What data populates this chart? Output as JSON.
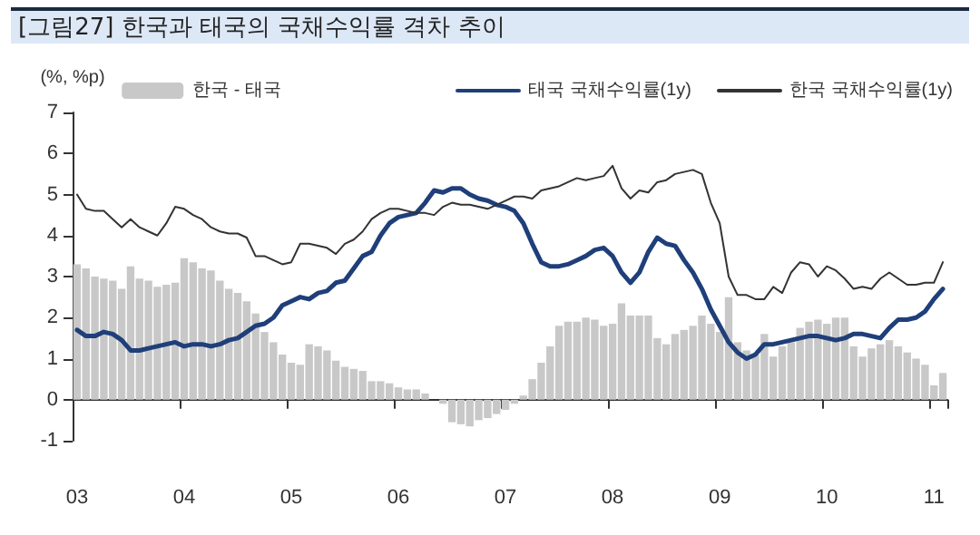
{
  "chart_data": {
    "type": "bar",
    "title": "[그림27] 한국과 태국의 국채수익률 격차 추이",
    "ylabel": "(%, %p)",
    "categories": [
      "03",
      null,
      null,
      null,
      null,
      null,
      null,
      null,
      null,
      null,
      null,
      null,
      "04",
      null,
      null,
      null,
      null,
      null,
      null,
      null,
      null,
      null,
      null,
      null,
      "05",
      null,
      null,
      null,
      null,
      null,
      null,
      null,
      null,
      null,
      null,
      null,
      "06",
      null,
      null,
      null,
      null,
      null,
      null,
      null,
      null,
      null,
      null,
      null,
      "07",
      null,
      null,
      null,
      null,
      null,
      null,
      null,
      null,
      null,
      null,
      null,
      "08",
      null,
      null,
      null,
      null,
      null,
      null,
      null,
      null,
      null,
      null,
      null,
      "09",
      null,
      null,
      null,
      null,
      null,
      null,
      null,
      null,
      null,
      null,
      null,
      "10",
      null,
      null,
      null,
      null,
      null,
      null,
      null,
      null,
      null,
      null,
      null,
      "11",
      null
    ],
    "series": [
      {
        "name": "한국 - 태국",
        "color": "#c8c8c8",
        "values": [
          3.3,
          3.2,
          3.0,
          2.95,
          2.9,
          2.7,
          3.25,
          2.95,
          2.9,
          2.75,
          2.8,
          2.85,
          3.45,
          3.35,
          3.2,
          3.15,
          2.9,
          2.7,
          2.6,
          2.4,
          2.1,
          1.65,
          1.4,
          1.1,
          0.9,
          0.85,
          1.35,
          1.3,
          1.2,
          0.95,
          0.8,
          0.75,
          0.7,
          0.45,
          0.45,
          0.4,
          0.3,
          0.25,
          0.25,
          0.15,
          0.0,
          -0.1,
          -0.55,
          -0.6,
          -0.65,
          -0.5,
          -0.45,
          -0.35,
          -0.25,
          -0.1,
          0.1,
          0.5,
          0.9,
          1.3,
          1.8,
          1.9,
          1.9,
          2.0,
          1.95,
          1.8,
          1.85,
          2.35,
          2.05,
          2.05,
          2.05,
          1.5,
          1.35,
          1.6,
          1.7,
          1.8,
          2.05,
          1.85,
          1.65,
          2.5,
          1.4,
          1.2,
          1.1,
          1.6,
          1.05,
          1.3,
          1.4,
          1.75,
          1.9,
          1.95,
          1.85,
          2.0,
          2.0,
          1.3,
          1.05,
          1.25,
          1.35,
          1.45,
          1.3,
          1.15,
          1.0,
          0.85,
          0.35,
          0.65
        ]
      },
      {
        "name": "태국 국채수익률(1y)",
        "type": "line",
        "color": "#1f3f7a",
        "values": [
          1.7,
          1.55,
          1.55,
          1.65,
          1.6,
          1.45,
          1.2,
          1.2,
          1.25,
          1.3,
          1.35,
          1.4,
          1.3,
          1.35,
          1.35,
          1.3,
          1.35,
          1.45,
          1.5,
          1.65,
          1.8,
          1.85,
          2.0,
          2.3,
          2.4,
          2.5,
          2.45,
          2.6,
          2.65,
          2.85,
          2.9,
          3.2,
          3.5,
          3.6,
          4.0,
          4.3,
          4.45,
          4.5,
          4.55,
          4.8,
          5.1,
          5.05,
          5.15,
          5.15,
          5.0,
          4.9,
          4.85,
          4.75,
          4.7,
          4.6,
          4.3,
          3.8,
          3.35,
          3.25,
          3.25,
          3.3,
          3.4,
          3.5,
          3.65,
          3.7,
          3.5,
          3.1,
          2.85,
          3.1,
          3.6,
          3.95,
          3.8,
          3.75,
          3.4,
          3.1,
          2.7,
          2.2,
          1.8,
          1.4,
          1.15,
          1.0,
          1.1,
          1.35,
          1.35,
          1.4,
          1.45,
          1.5,
          1.55,
          1.55,
          1.5,
          1.45,
          1.5,
          1.6,
          1.6,
          1.55,
          1.5,
          1.75,
          1.95,
          1.95,
          2.0,
          2.15,
          2.45,
          2.7
        ]
      },
      {
        "name": "한국 국채수익률(1y)",
        "type": "line",
        "color": "#333333",
        "values": [
          5.0,
          4.65,
          4.6,
          4.6,
          4.4,
          4.2,
          4.4,
          4.2,
          4.1,
          4.0,
          4.3,
          4.7,
          4.65,
          4.5,
          4.4,
          4.2,
          4.1,
          4.05,
          4.05,
          3.95,
          3.5,
          3.5,
          3.4,
          3.3,
          3.35,
          3.8,
          3.8,
          3.75,
          3.7,
          3.55,
          3.8,
          3.9,
          4.1,
          4.4,
          4.55,
          4.65,
          4.65,
          4.6,
          4.55,
          4.55,
          4.5,
          4.7,
          4.8,
          4.75,
          4.75,
          4.7,
          4.65,
          4.75,
          4.85,
          4.95,
          4.95,
          4.9,
          5.1,
          5.15,
          5.2,
          5.3,
          5.4,
          5.35,
          5.4,
          5.45,
          5.7,
          5.15,
          4.9,
          5.1,
          5.05,
          5.3,
          5.35,
          5.5,
          5.55,
          5.6,
          5.5,
          4.8,
          4.3,
          3.0,
          2.55,
          2.55,
          2.45,
          2.45,
          2.75,
          2.6,
          3.1,
          3.35,
          3.3,
          3.0,
          3.25,
          3.15,
          2.95,
          2.7,
          2.75,
          2.7,
          2.95,
          3.1,
          2.95,
          2.8,
          2.8,
          2.85,
          2.85,
          3.35
        ]
      }
    ],
    "ylim": [
      -1,
      7
    ],
    "yticks": [
      -1,
      0,
      1,
      2,
      3,
      4,
      5,
      6,
      7
    ],
    "legend": "top right",
    "marker": "none"
  }
}
